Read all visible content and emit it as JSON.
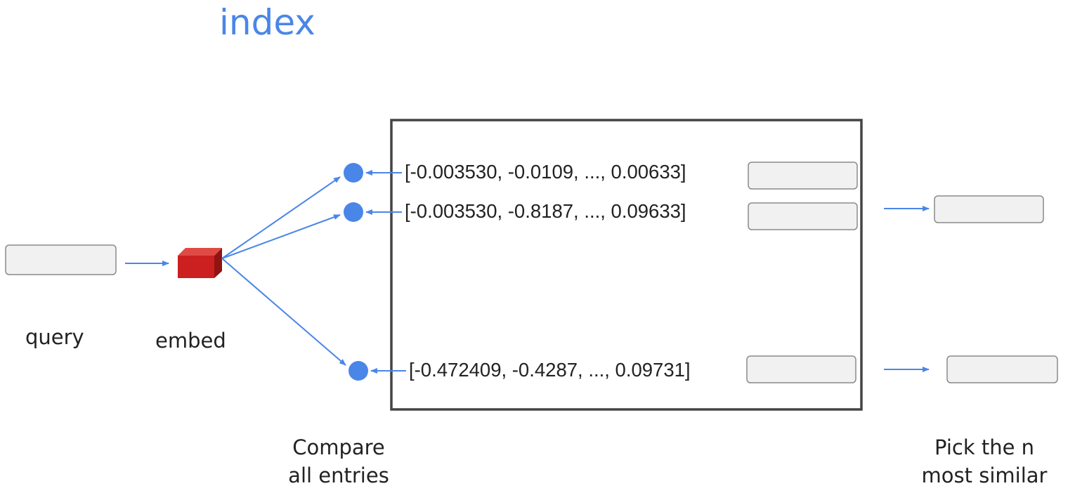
{
  "title": "index",
  "labels": {
    "query": "query",
    "embed": "embed",
    "compare": [
      "Compare",
      "all entries"
    ],
    "pick": [
      "Pick the n",
      "most similar"
    ]
  },
  "entries": [
    {
      "vector": "[-0.003530, -0.0109, ..., 0.00633]",
      "selected": false
    },
    {
      "vector": "[-0.003530, -0.8187, ..., 0.09633]",
      "selected": true
    },
    {
      "vector": "[-0.472409, -0.4287, ..., 0.09731]",
      "selected": true
    }
  ],
  "colors": {
    "accent": "#4a86e8",
    "embed_cube": "#cc1f1f",
    "text_box_fill": "#f1f1f1",
    "text_box_border": "#8a8a8a",
    "index_border": "#444444"
  }
}
